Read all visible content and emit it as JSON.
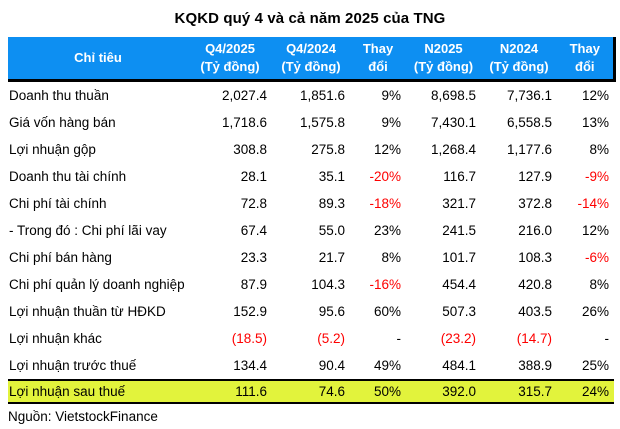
{
  "colors": {
    "header_bg": "#0d8ff2",
    "header_text": "#ffffff",
    "highlight_bg": "#e2f33c",
    "negative_text": "#fe0000",
    "border": "#000000"
  },
  "chart_data": {
    "type": "table",
    "title": "KQKD quý 4 và cả năm 2025 của TNG",
    "source": "Nguồn: VietstockFinance",
    "columns": [
      {
        "line1": "Chỉ tiêu",
        "line2": ""
      },
      {
        "line1": "Q4/2025",
        "line2": "(Tỷ đồng)"
      },
      {
        "line1": "Q4/2024",
        "line2": "(Tỷ đồng)"
      },
      {
        "line1": "Thay",
        "line2": "đổi"
      },
      {
        "line1": "N2025",
        "line2": "(Tỷ đồng)"
      },
      {
        "line1": "N2024",
        "line2": "(Tỷ đồng)"
      },
      {
        "line1": "Thay",
        "line2": "đổi"
      }
    ],
    "rows": [
      {
        "label": "Doanh thu thuần",
        "highlight": false,
        "cells": [
          {
            "t": "2,027.4",
            "neg": false
          },
          {
            "t": "1,851.6",
            "neg": false
          },
          {
            "t": "9%",
            "neg": false
          },
          {
            "t": "8,698.5",
            "neg": false
          },
          {
            "t": "7,736.1",
            "neg": false
          },
          {
            "t": "12%",
            "neg": false
          }
        ]
      },
      {
        "label": "Giá vốn hàng bán",
        "highlight": false,
        "cells": [
          {
            "t": "1,718.6",
            "neg": false
          },
          {
            "t": "1,575.8",
            "neg": false
          },
          {
            "t": "9%",
            "neg": false
          },
          {
            "t": "7,430.1",
            "neg": false
          },
          {
            "t": "6,558.5",
            "neg": false
          },
          {
            "t": "13%",
            "neg": false
          }
        ]
      },
      {
        "label": "Lợi nhuận gộp",
        "highlight": false,
        "cells": [
          {
            "t": "308.8",
            "neg": false
          },
          {
            "t": "275.8",
            "neg": false
          },
          {
            "t": "12%",
            "neg": false
          },
          {
            "t": "1,268.4",
            "neg": false
          },
          {
            "t": "1,177.6",
            "neg": false
          },
          {
            "t": "8%",
            "neg": false
          }
        ]
      },
      {
        "label": "Doanh thu tài chính",
        "highlight": false,
        "cells": [
          {
            "t": "28.1",
            "neg": false
          },
          {
            "t": "35.1",
            "neg": false
          },
          {
            "t": "-20%",
            "neg": true
          },
          {
            "t": "116.7",
            "neg": false
          },
          {
            "t": "127.9",
            "neg": false
          },
          {
            "t": "-9%",
            "neg": true
          }
        ]
      },
      {
        "label": "Chi phí tài chính",
        "highlight": false,
        "cells": [
          {
            "t": "72.8",
            "neg": false
          },
          {
            "t": "89.3",
            "neg": false
          },
          {
            "t": "-18%",
            "neg": true
          },
          {
            "t": "321.7",
            "neg": false
          },
          {
            "t": "372.8",
            "neg": false
          },
          {
            "t": "-14%",
            "neg": true
          }
        ]
      },
      {
        "label": "- Trong đó : Chi phí lãi vay",
        "highlight": false,
        "cells": [
          {
            "t": "67.4",
            "neg": false
          },
          {
            "t": "55.0",
            "neg": false
          },
          {
            "t": "23%",
            "neg": false
          },
          {
            "t": "241.5",
            "neg": false
          },
          {
            "t": "216.0",
            "neg": false
          },
          {
            "t": "12%",
            "neg": false
          }
        ]
      },
      {
        "label": "Chi phí bán hàng",
        "highlight": false,
        "cells": [
          {
            "t": "23.3",
            "neg": false
          },
          {
            "t": "21.7",
            "neg": false
          },
          {
            "t": "8%",
            "neg": false
          },
          {
            "t": "101.7",
            "neg": false
          },
          {
            "t": "108.3",
            "neg": false
          },
          {
            "t": "-6%",
            "neg": true
          }
        ]
      },
      {
        "label": "Chi phí quản lý doanh nghiệp",
        "highlight": false,
        "cells": [
          {
            "t": "87.9",
            "neg": false
          },
          {
            "t": "104.3",
            "neg": false
          },
          {
            "t": "-16%",
            "neg": true
          },
          {
            "t": "454.4",
            "neg": false
          },
          {
            "t": "420.8",
            "neg": false
          },
          {
            "t": "8%",
            "neg": false
          }
        ]
      },
      {
        "label": "Lợi nhuận thuần từ HĐKD",
        "highlight": false,
        "cells": [
          {
            "t": "152.9",
            "neg": false
          },
          {
            "t": "95.6",
            "neg": false
          },
          {
            "t": "60%",
            "neg": false
          },
          {
            "t": "507.3",
            "neg": false
          },
          {
            "t": "403.5",
            "neg": false
          },
          {
            "t": "26%",
            "neg": false
          }
        ]
      },
      {
        "label": "Lợi nhuận khác",
        "highlight": false,
        "cells": [
          {
            "t": "(18.5)",
            "neg": true
          },
          {
            "t": "(5.2)",
            "neg": true
          },
          {
            "t": "-",
            "neg": false
          },
          {
            "t": "(23.2)",
            "neg": true
          },
          {
            "t": "(14.7)",
            "neg": true
          },
          {
            "t": "-",
            "neg": false
          }
        ]
      },
      {
        "label": "Lợi nhuận trước thuế",
        "highlight": false,
        "cells": [
          {
            "t": "134.4",
            "neg": false
          },
          {
            "t": "90.4",
            "neg": false
          },
          {
            "t": "49%",
            "neg": false
          },
          {
            "t": "484.1",
            "neg": false
          },
          {
            "t": "388.9",
            "neg": false
          },
          {
            "t": "25%",
            "neg": false
          }
        ]
      },
      {
        "label": "Lợi nhuận sau thuế",
        "highlight": true,
        "cells": [
          {
            "t": "111.6",
            "neg": false
          },
          {
            "t": "74.6",
            "neg": false
          },
          {
            "t": "50%",
            "neg": false
          },
          {
            "t": "392.0",
            "neg": false
          },
          {
            "t": "315.7",
            "neg": false
          },
          {
            "t": "24%",
            "neg": false
          }
        ]
      }
    ]
  }
}
